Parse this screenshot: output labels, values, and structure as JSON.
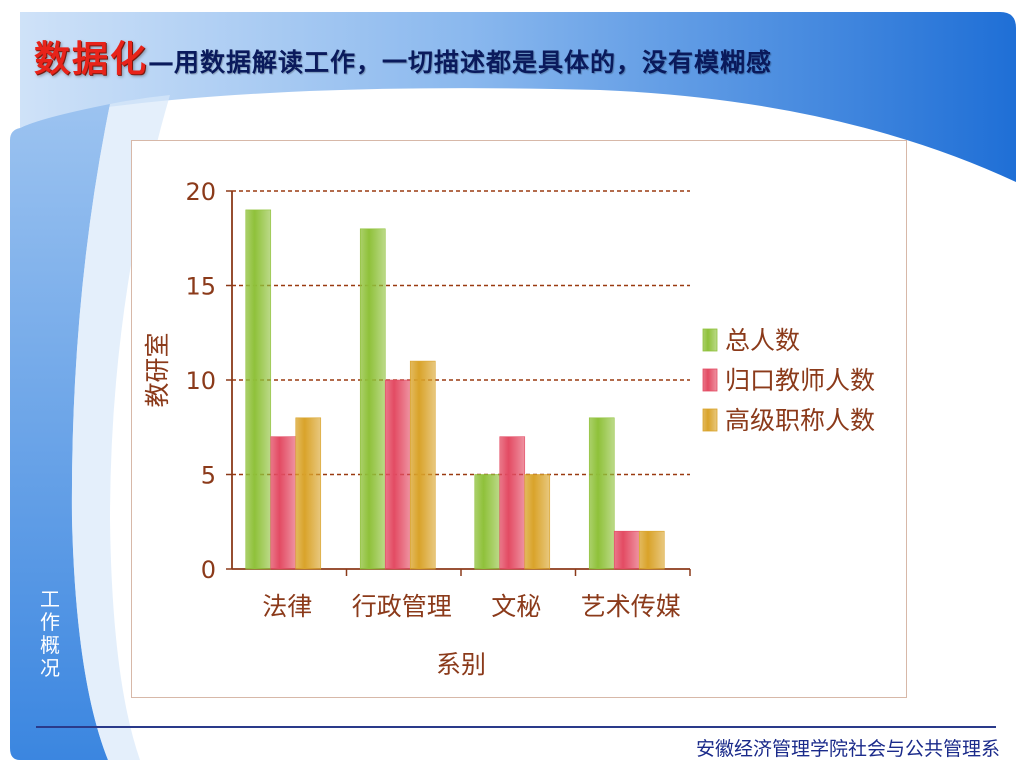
{
  "slide": {
    "title_main": "数据化",
    "title_separator": "—",
    "title_sub": "用数据解读工作，一切描述都是具体的，没有模糊感",
    "side_label": "工作概况",
    "footer": "安徽经济管理学院社会与公共管理系"
  },
  "colors": {
    "title_red": "#e8231a",
    "title_navy": "#0a1a5c",
    "theme_blue": "#2f7fe0",
    "axis_brown": "#8b3a1a",
    "series_green": "#8fc13a",
    "series_red": "#e34b63",
    "series_gold": "#d9a32a"
  },
  "chart_data": {
    "type": "bar",
    "title": "",
    "xlabel": "系别",
    "ylabel": "教研室",
    "categories": [
      "法律",
      "行政管理",
      "文秘",
      "艺术传媒"
    ],
    "series": [
      {
        "name": "总人数",
        "values": [
          19,
          18,
          5,
          8
        ],
        "color": "#8fc13a"
      },
      {
        "name": "归口教师人数",
        "values": [
          7,
          10,
          7,
          2
        ],
        "color": "#e34b63"
      },
      {
        "name": "高级职称人数",
        "values": [
          8,
          11,
          5,
          2
        ],
        "color": "#d9a32a"
      }
    ],
    "ylim": [
      0,
      20
    ],
    "yticks": [
      0,
      5,
      10,
      15,
      20
    ],
    "grid": true,
    "grid_style": "dashed",
    "legend_position": "right"
  }
}
